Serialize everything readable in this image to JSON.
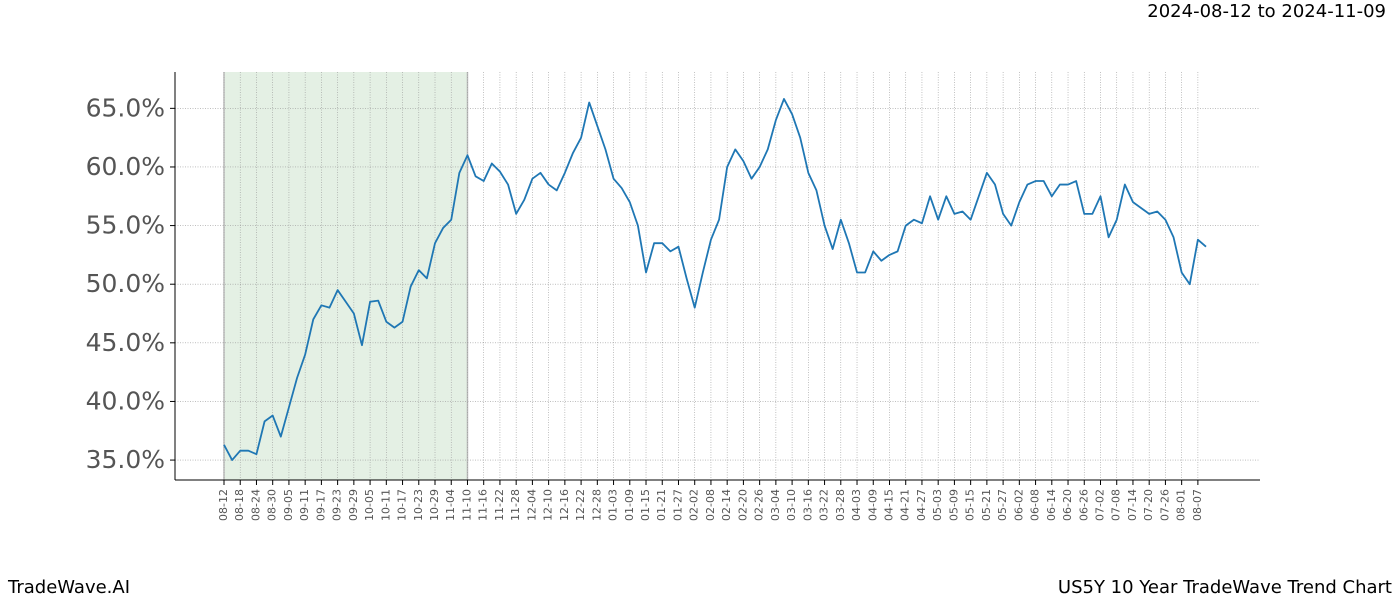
{
  "header": {
    "date_range": "2024-08-12 to 2024-11-09"
  },
  "footer": {
    "brand": "TradeWave.AI",
    "chart_name": "US5Y 10 Year TradeWave Trend Chart"
  },
  "chart_data": {
    "type": "line",
    "color": "#1f77b4",
    "grid": true,
    "shaded_span": [
      "08-12",
      "11-10"
    ],
    "shade_color": "#d8ead8",
    "x": [
      "08-12",
      "08-15",
      "08-18",
      "08-21",
      "08-24",
      "08-27",
      "08-30",
      "09-02",
      "09-05",
      "09-08",
      "09-11",
      "09-14",
      "09-17",
      "09-20",
      "09-23",
      "09-26",
      "09-29",
      "10-02",
      "10-05",
      "10-08",
      "10-11",
      "10-14",
      "10-17",
      "10-20",
      "10-23",
      "10-26",
      "10-29",
      "11-01",
      "11-04",
      "11-07",
      "11-10",
      "11-13",
      "11-16",
      "11-19",
      "11-22",
      "11-25",
      "11-28",
      "12-01",
      "12-04",
      "12-07",
      "12-10",
      "12-13",
      "12-16",
      "12-19",
      "12-22",
      "12-25",
      "12-28",
      "12-31",
      "01-03",
      "01-06",
      "01-09",
      "01-12",
      "01-15",
      "01-18",
      "01-21",
      "01-24",
      "01-27",
      "01-30",
      "02-02",
      "02-05",
      "02-08",
      "02-11",
      "02-14",
      "02-17",
      "02-20",
      "02-23",
      "02-26",
      "03-01",
      "03-04",
      "03-07",
      "03-10",
      "03-13",
      "03-16",
      "03-19",
      "03-22",
      "03-25",
      "03-28",
      "03-31",
      "04-03",
      "04-06",
      "04-09",
      "04-12",
      "04-15",
      "04-18",
      "04-21",
      "04-24",
      "04-27",
      "04-30",
      "05-03",
      "05-06",
      "05-09",
      "05-12",
      "05-15",
      "05-18",
      "05-21",
      "05-24",
      "05-27",
      "05-30",
      "06-02",
      "06-05",
      "06-08",
      "06-11",
      "06-14",
      "06-17",
      "06-20",
      "06-23",
      "06-26",
      "06-29",
      "07-02",
      "07-05",
      "07-08",
      "07-11",
      "07-14",
      "07-17",
      "07-20",
      "07-23",
      "07-26",
      "07-29",
      "08-01",
      "08-04",
      "08-07",
      "08-10"
    ],
    "values": [
      36.3,
      35.0,
      35.8,
      35.8,
      35.5,
      38.3,
      38.8,
      37.0,
      39.5,
      42.0,
      44.0,
      47.0,
      48.2,
      48.0,
      49.5,
      48.5,
      47.5,
      44.8,
      48.5,
      48.6,
      46.8,
      46.3,
      46.8,
      49.8,
      51.2,
      50.5,
      53.5,
      54.8,
      55.5,
      59.5,
      61.0,
      59.2,
      58.8,
      60.3,
      59.6,
      58.5,
      56.0,
      57.2,
      59.0,
      59.5,
      58.5,
      58.0,
      59.5,
      61.2,
      62.5,
      65.5,
      63.5,
      61.5,
      59.0,
      58.2,
      57.0,
      55.0,
      51.0,
      53.5,
      53.5,
      52.8,
      53.2,
      50.5,
      48.0,
      51.0,
      53.8,
      55.5,
      60.0,
      61.5,
      60.5,
      59.0,
      60.0,
      61.5,
      64.0,
      65.8,
      64.5,
      62.5,
      59.5,
      58.0,
      55.0,
      53.0,
      55.5,
      53.5,
      51.0,
      51.0,
      52.8,
      52.0,
      52.5,
      52.8,
      55.0,
      55.5,
      55.2,
      57.5,
      55.5,
      57.5,
      56.0,
      56.2,
      55.5,
      57.5,
      59.5,
      58.5,
      56.0,
      55.0,
      57.0,
      58.5,
      58.8,
      58.8,
      57.5,
      58.5,
      58.5,
      58.8,
      56.0,
      56.0,
      57.5,
      54.0,
      55.5,
      58.5,
      57.0,
      56.5,
      56.0,
      56.2,
      55.5,
      54.0,
      51.0,
      50.0,
      53.8,
      53.2
    ],
    "xticks": [
      "08-12",
      "08-18",
      "08-24",
      "08-30",
      "09-05",
      "09-11",
      "09-17",
      "09-23",
      "09-29",
      "10-05",
      "10-11",
      "10-17",
      "10-23",
      "10-29",
      "11-04",
      "11-10",
      "11-16",
      "11-22",
      "11-28",
      "12-04",
      "12-10",
      "12-16",
      "12-22",
      "12-28",
      "01-03",
      "01-09",
      "01-15",
      "01-21",
      "01-27",
      "02-02",
      "02-08",
      "02-14",
      "02-20",
      "02-26",
      "03-04",
      "03-10",
      "03-16",
      "03-22",
      "03-28",
      "04-03",
      "04-09",
      "04-15",
      "04-21",
      "04-27",
      "05-03",
      "05-09",
      "05-15",
      "05-21",
      "05-27",
      "06-02",
      "06-08",
      "06-14",
      "06-20",
      "06-26",
      "07-02",
      "07-08",
      "07-14",
      "07-20",
      "07-26",
      "08-01",
      "08-07"
    ],
    "ylim": [
      33.3,
      68.1
    ],
    "yticks": [
      {
        "value": 35,
        "label": "35.0%"
      },
      {
        "value": 40,
        "label": "40.0%"
      },
      {
        "value": 45,
        "label": "45.0%"
      },
      {
        "value": 50,
        "label": "50.0%"
      },
      {
        "value": 55,
        "label": "55.0%"
      },
      {
        "value": 60,
        "label": "60.0%"
      },
      {
        "value": 65,
        "label": "65.0%"
      }
    ]
  }
}
